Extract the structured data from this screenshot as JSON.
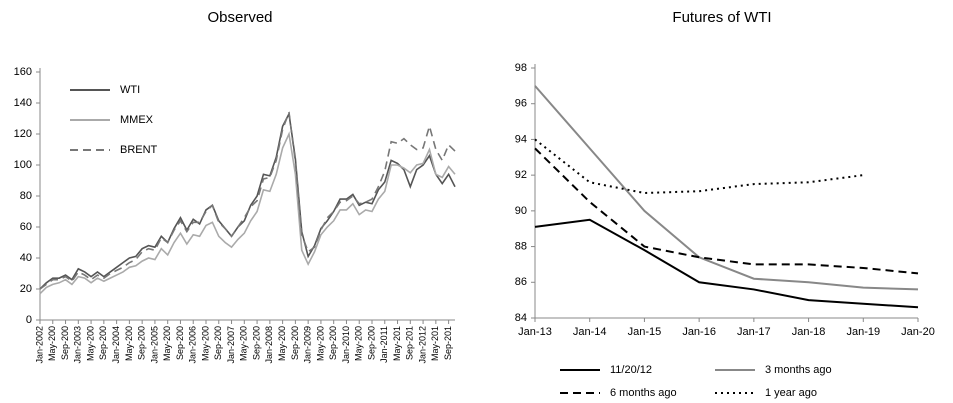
{
  "chart_data": [
    {
      "type": "line",
      "title": "Observed",
      "legend": "upper left",
      "categories": [
        "Jan-2002",
        null,
        "May-200",
        null,
        "Sep-200",
        null,
        "Jan-2003",
        null,
        "May-200",
        null,
        "Sep-200",
        null,
        "Jan-2004",
        null,
        "May-200",
        null,
        "Sep-200",
        null,
        "Jan-2005",
        null,
        "May-200",
        null,
        "Sep-200",
        null,
        "Jan-2006",
        null,
        "May-200",
        null,
        "Sep-200",
        null,
        "Jan-2007",
        null,
        "May-200",
        null,
        "Sep-200",
        null,
        "Jan-2008",
        null,
        "May-200",
        null,
        "Sep-200",
        null,
        "Jan-2009",
        null,
        "May-200",
        null,
        "Sep-200",
        null,
        "Jan-2010",
        null,
        "May-200",
        null,
        "Sep-200",
        null,
        "Jan-2011",
        null,
        "May-201",
        null,
        "Sep-201",
        null,
        "Jan-2012",
        null,
        "May-201",
        null,
        "Sep-201",
        null
      ],
      "ylim": [
        0,
        160
      ],
      "yticks": [
        0,
        20,
        40,
        60,
        80,
        100,
        120,
        140,
        160
      ],
      "series": [
        {
          "name": "WTI",
          "color": "#555555",
          "dash": "solid",
          "values": [
            20,
            24,
            27,
            27,
            29,
            26,
            33,
            31,
            28,
            31,
            28,
            31,
            34,
            37,
            40,
            41,
            46,
            48,
            47,
            54,
            50,
            59,
            66,
            58,
            65,
            62,
            71,
            74,
            64,
            59,
            54,
            60,
            64,
            74,
            80,
            94,
            93,
            105,
            125,
            133,
            104,
            57,
            41,
            48,
            59,
            64,
            70,
            78,
            78,
            81,
            74,
            76,
            75,
            84,
            89,
            103,
            101,
            97,
            86,
            97,
            100,
            106,
            94,
            88,
            94,
            86
          ]
        },
        {
          "name": "MMEX",
          "color": "#aaaaaa",
          "dash": "solid",
          "values": [
            17,
            21,
            23,
            24,
            26,
            23,
            28,
            27,
            24,
            27,
            25,
            27,
            29,
            31,
            34,
            35,
            38,
            40,
            39,
            46,
            42,
            50,
            56,
            49,
            55,
            54,
            61,
            63,
            54,
            50,
            47,
            52,
            56,
            64,
            70,
            84,
            83,
            94,
            111,
            120,
            94,
            45,
            36,
            44,
            55,
            60,
            64,
            71,
            71,
            75,
            68,
            71,
            70,
            78,
            83,
            100,
            100,
            98,
            95,
            100,
            101,
            110,
            94,
            92,
            99,
            94
          ]
        },
        {
          "name": "BRENT",
          "color": "#777777",
          "dash": "dashed",
          "values": [
            20,
            23,
            26,
            26,
            28,
            25,
            31,
            29,
            26,
            29,
            27,
            30,
            32,
            34,
            37,
            39,
            44,
            46,
            45,
            53,
            50,
            58,
            64,
            57,
            63,
            63,
            70,
            74,
            63,
            59,
            54,
            60,
            66,
            73,
            77,
            91,
            92,
            103,
            123,
            134,
            102,
            55,
            44,
            47,
            58,
            66,
            70,
            76,
            77,
            80,
            75,
            76,
            78,
            86,
            96,
            115,
            114,
            117,
            113,
            110,
            111,
            125,
            110,
            103,
            113,
            109
          ]
        }
      ]
    },
    {
      "type": "line",
      "title": "Futures of WTI",
      "legend": "bottom",
      "categories": [
        "Jan-13",
        "Jan-14",
        "Jan-15",
        "Jan-16",
        "Jan-17",
        "Jan-18",
        "Jan-19",
        "Jan-20"
      ],
      "ylim": [
        84,
        98
      ],
      "yticks": [
        84,
        86,
        88,
        90,
        92,
        94,
        96,
        98
      ],
      "series": [
        {
          "name": "11/20/12",
          "color": "#000000",
          "dash": "solid",
          "values": [
            89.1,
            89.5,
            87.8,
            86.0,
            85.6,
            85.0,
            84.8,
            84.6
          ]
        },
        {
          "name": "3 months ago",
          "color": "#888888",
          "dash": "solid",
          "values": [
            97.0,
            93.5,
            90.0,
            87.4,
            86.2,
            86.0,
            85.7,
            85.6
          ]
        },
        {
          "name": "6 months ago",
          "color": "#000000",
          "dash": "dashed",
          "values": [
            93.5,
            90.5,
            88.0,
            87.4,
            87.0,
            87.0,
            86.8,
            86.5
          ]
        },
        {
          "name": "1 year ago",
          "color": "#000000",
          "dash": "dotted",
          "values": [
            94.0,
            91.6,
            91.0,
            91.1,
            91.5,
            91.6,
            92.0,
            null
          ]
        }
      ]
    }
  ]
}
